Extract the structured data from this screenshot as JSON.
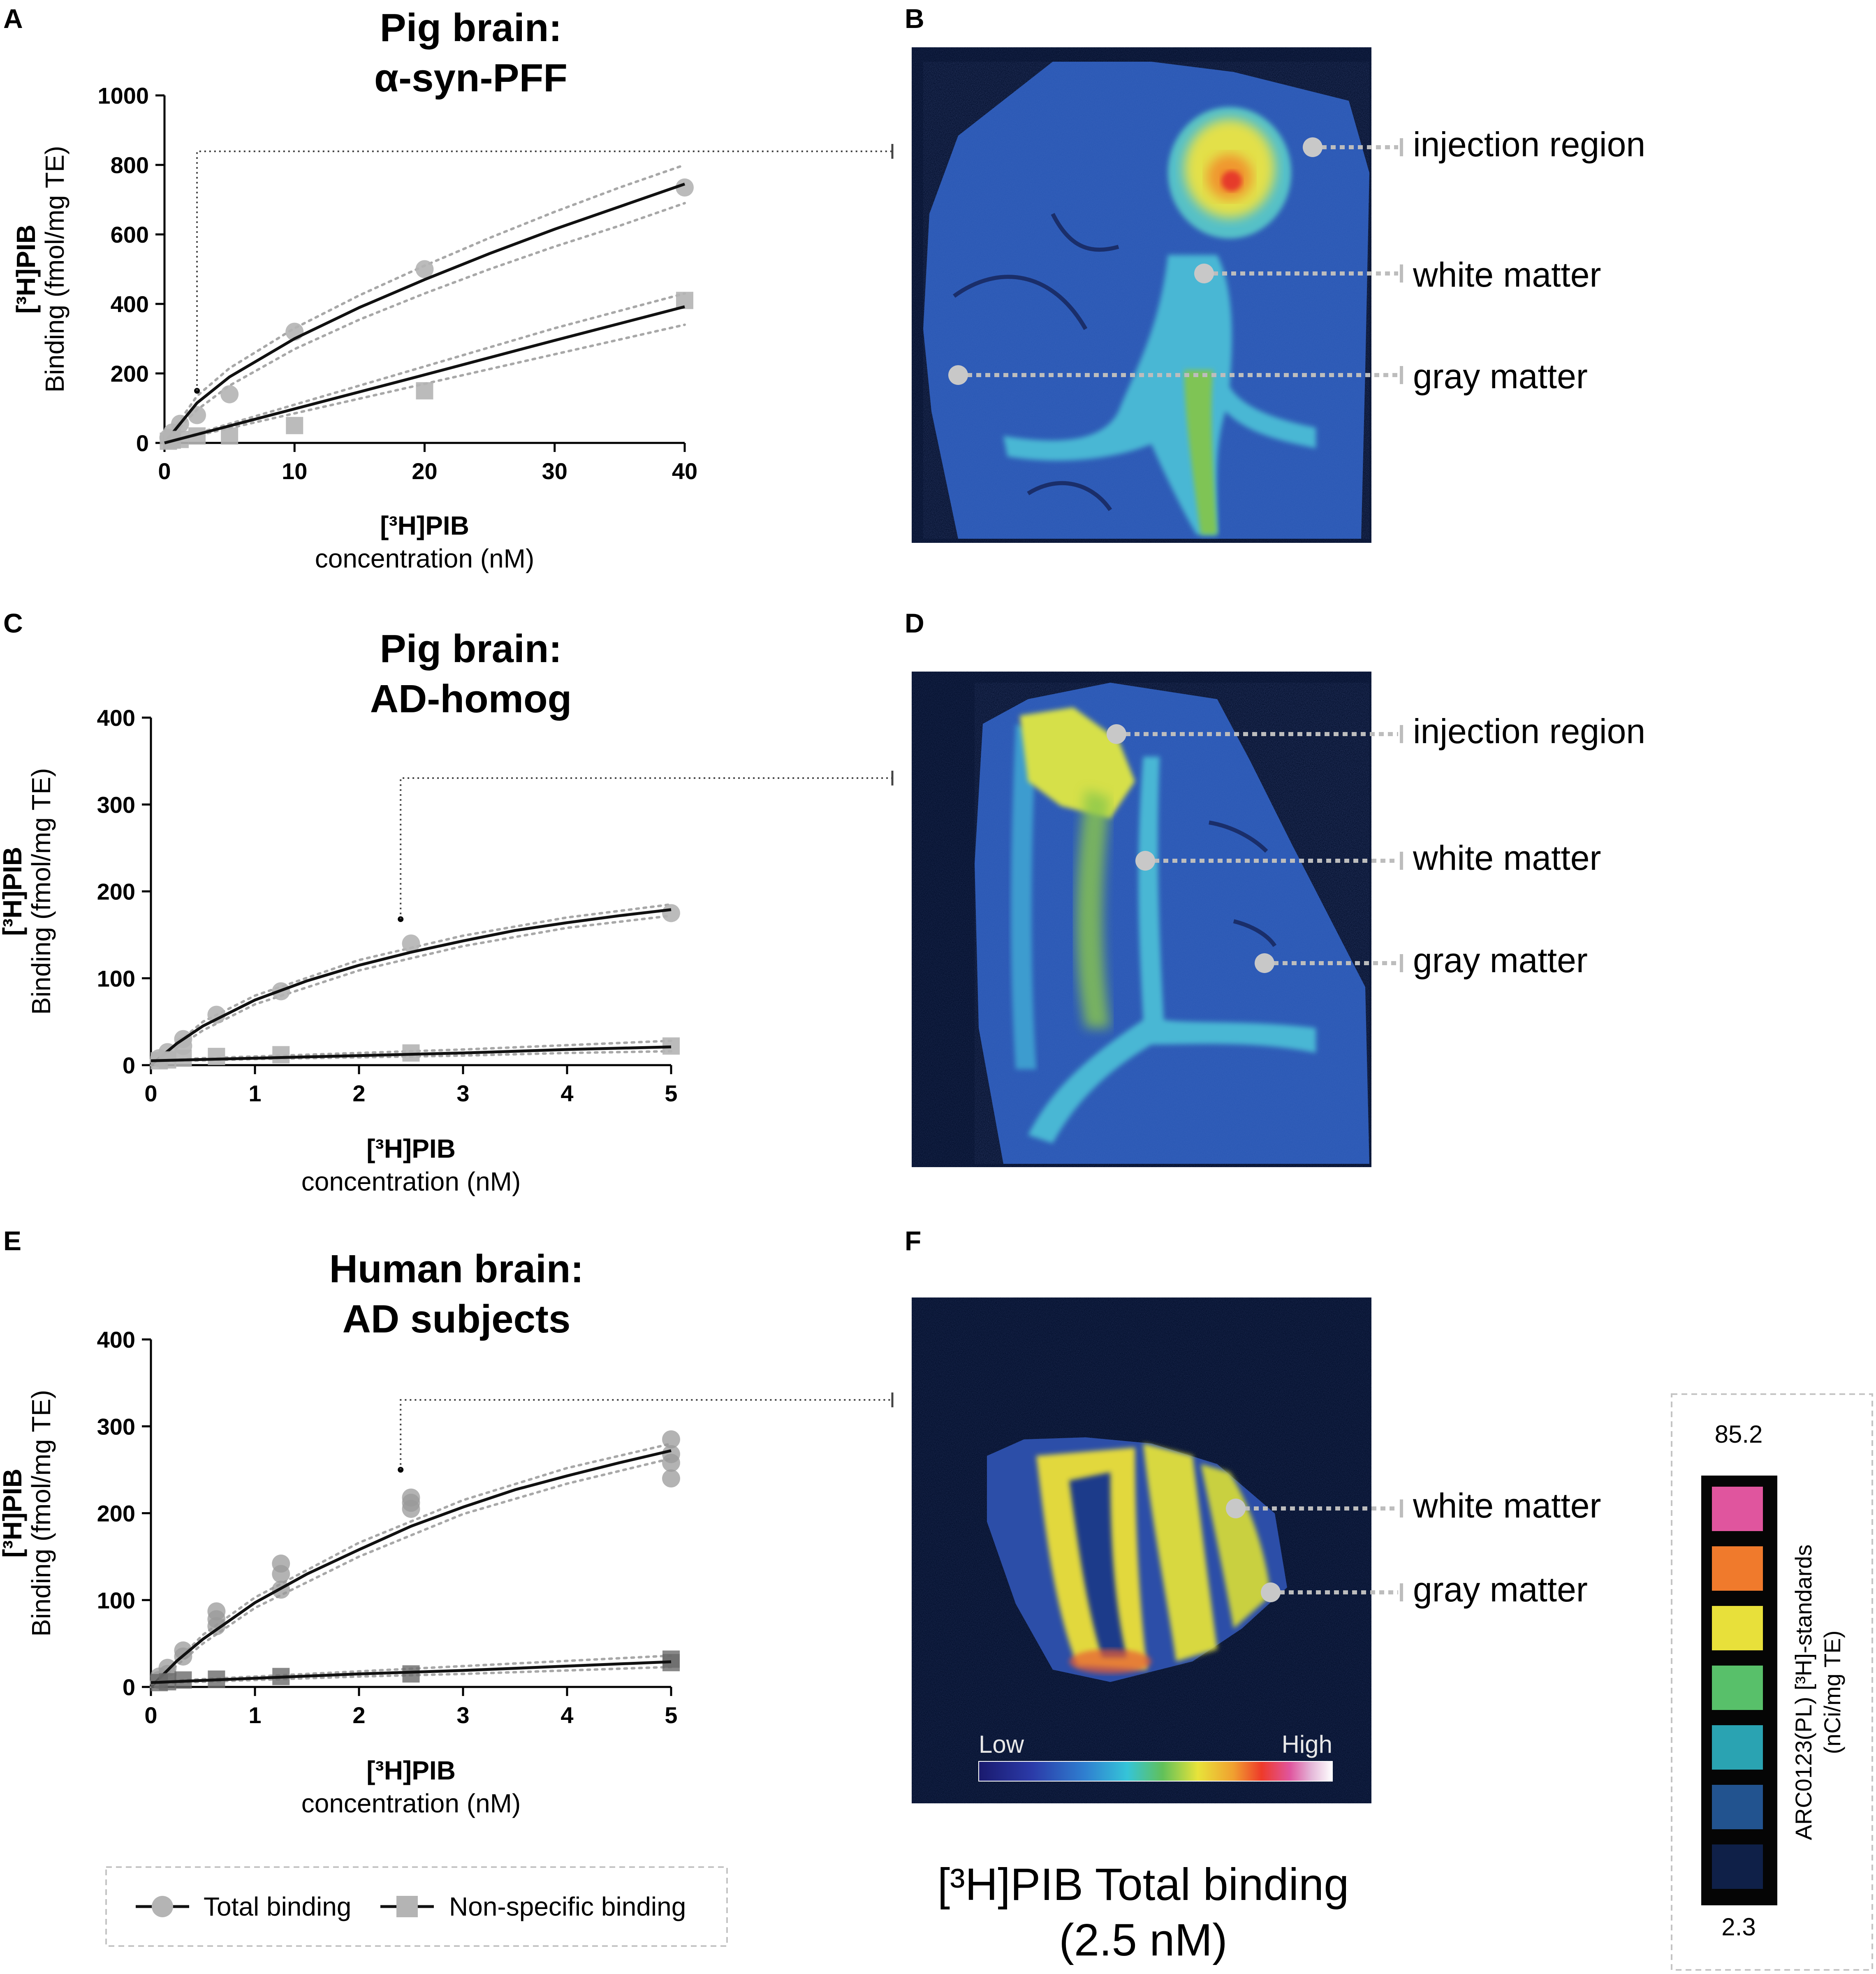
{
  "panels": {
    "A": "A",
    "B": "B",
    "C": "C",
    "D": "D",
    "E": "E",
    "F": "F"
  },
  "colors": {
    "fit_line": "#111111",
    "ci_line": "#a8a8a8",
    "total_marker": "#b4b4b4",
    "nonspecific_marker": "#b4b4b4",
    "human_total_marker": "#9a9a9a",
    "human_nonspecific_marker": "#6a6a6a",
    "leader": "#bdbdbd",
    "image_background": "#04102e"
  },
  "chart_data": [
    {
      "id": "A",
      "type": "scatter",
      "title": [
        "Pig brain:",
        "α-syn-PFF"
      ],
      "ylabel_bold": "[³H]PIB",
      "ylabel": "Binding (fmol/mg TE)",
      "xlabel_bold": "[³H]PIB",
      "xlabel": "concentration (nM)",
      "xlim": [
        0,
        40
      ],
      "ylim": [
        0,
        1000
      ],
      "xticks": [
        0,
        10,
        20,
        30,
        40
      ],
      "yticks": [
        0,
        200,
        400,
        600,
        800,
        1000
      ],
      "reference_point": {
        "x": 2.5,
        "y": 150
      },
      "series": [
        {
          "name": "Total binding",
          "marker": "circle",
          "points": [
            [
              0.3,
              15
            ],
            [
              0.6,
              30
            ],
            [
              1.2,
              55
            ],
            [
              2.5,
              80
            ],
            [
              5,
              140
            ],
            [
              10,
              320
            ],
            [
              20,
              500
            ],
            [
              40,
              735
            ]
          ],
          "fit": [
            [
              0,
              0
            ],
            [
              2.5,
              115
            ],
            [
              5,
              190
            ],
            [
              10,
              300
            ],
            [
              15,
              390
            ],
            [
              20,
              470
            ],
            [
              25,
              545
            ],
            [
              30,
              615
            ],
            [
              35,
              680
            ],
            [
              40,
              745
            ]
          ],
          "ci_upper": [
            [
              0,
              0
            ],
            [
              2.5,
              135
            ],
            [
              5,
              215
            ],
            [
              10,
              330
            ],
            [
              15,
              425
            ],
            [
              20,
              510
            ],
            [
              25,
              590
            ],
            [
              30,
              665
            ],
            [
              35,
              735
            ],
            [
              40,
              800
            ]
          ],
          "ci_lower": [
            [
              0,
              0
            ],
            [
              2.5,
              95
            ],
            [
              5,
              165
            ],
            [
              10,
              270
            ],
            [
              15,
              355
            ],
            [
              20,
              430
            ],
            [
              25,
              500
            ],
            [
              30,
              565
            ],
            [
              35,
              625
            ],
            [
              40,
              690
            ]
          ]
        },
        {
          "name": "Non-specific binding",
          "marker": "square",
          "points": [
            [
              0.3,
              5
            ],
            [
              0.6,
              8
            ],
            [
              1.2,
              10
            ],
            [
              2.5,
              20
            ],
            [
              5,
              20
            ],
            [
              10,
              50
            ],
            [
              20,
              150
            ],
            [
              40,
              410
            ]
          ],
          "fit": [
            [
              0,
              0
            ],
            [
              10,
              98
            ],
            [
              20,
              196
            ],
            [
              30,
              295
            ],
            [
              40,
              392
            ]
          ],
          "ci_upper": [
            [
              0,
              0
            ],
            [
              10,
              110
            ],
            [
              20,
              220
            ],
            [
              30,
              330
            ],
            [
              40,
              430
            ]
          ],
          "ci_lower": [
            [
              0,
              0
            ],
            [
              10,
              85
            ],
            [
              20,
              170
            ],
            [
              30,
              255
            ],
            [
              40,
              340
            ]
          ]
        }
      ]
    },
    {
      "id": "C",
      "type": "scatter",
      "title": [
        "Pig brain:",
        "AD-homog"
      ],
      "ylabel_bold": "[³H]PIB",
      "ylabel": "Binding (fmol/mg TE)",
      "xlabel_bold": "[³H]PIB",
      "xlabel": "concentration (nM)",
      "xlim": [
        0,
        5
      ],
      "ylim": [
        0,
        400
      ],
      "xticks": [
        0,
        1,
        2,
        3,
        4,
        5
      ],
      "yticks": [
        0,
        100,
        200,
        300,
        400
      ],
      "reference_point": {
        "x": 2.4,
        "y": 168
      },
      "series": [
        {
          "name": "Total binding",
          "marker": "circle",
          "points": [
            [
              0.08,
              8
            ],
            [
              0.16,
              15
            ],
            [
              0.31,
              30
            ],
            [
              0.31,
              22
            ],
            [
              0.63,
              58
            ],
            [
              1.25,
              85
            ],
            [
              2.5,
              140
            ],
            [
              5,
              175
            ]
          ],
          "fit": [
            [
              0,
              0
            ],
            [
              0.25,
              25
            ],
            [
              0.5,
              45
            ],
            [
              1,
              75
            ],
            [
              1.5,
              97
            ],
            [
              2,
              115
            ],
            [
              2.5,
              130
            ],
            [
              3,
              143
            ],
            [
              3.5,
              155
            ],
            [
              4,
              164
            ],
            [
              4.5,
              172
            ],
            [
              5,
              179
            ]
          ],
          "ci_upper": [
            [
              0,
              0
            ],
            [
              0.5,
              50
            ],
            [
              1,
              80
            ],
            [
              2,
              121
            ],
            [
              3,
              149
            ],
            [
              4,
              170
            ],
            [
              5,
              185
            ]
          ],
          "ci_lower": [
            [
              0,
              0
            ],
            [
              0.5,
              40
            ],
            [
              1,
              70
            ],
            [
              2,
              109
            ],
            [
              3,
              137
            ],
            [
              4,
              158
            ],
            [
              5,
              172
            ]
          ]
        },
        {
          "name": "Non-specific binding",
          "marker": "square",
          "points": [
            [
              0.08,
              5
            ],
            [
              0.16,
              6
            ],
            [
              0.31,
              8
            ],
            [
              0.63,
              10
            ],
            [
              1.25,
              12
            ],
            [
              2.5,
              14
            ],
            [
              5,
              22
            ]
          ],
          "fit": [
            [
              0,
              5
            ],
            [
              1,
              8
            ],
            [
              2,
              11
            ],
            [
              3,
              14
            ],
            [
              4,
              18
            ],
            [
              5,
              21
            ]
          ],
          "ci_upper": [
            [
              0,
              6
            ],
            [
              1,
              10
            ],
            [
              2,
              14
            ],
            [
              3,
              18
            ],
            [
              4,
              23
            ],
            [
              5,
              28
            ]
          ],
          "ci_lower": [
            [
              0,
              4
            ],
            [
              1,
              7
            ],
            [
              2,
              9
            ],
            [
              3,
              11
            ],
            [
              4,
              14
            ],
            [
              5,
              16
            ]
          ]
        }
      ]
    },
    {
      "id": "E",
      "type": "scatter",
      "title": [
        "Human brain:",
        "AD subjects"
      ],
      "ylabel_bold": "[³H]PIB",
      "ylabel": "Binding (fmol/mg TE)",
      "xlabel_bold": "[³H]PIB",
      "xlabel": "concentration (nM)",
      "xlim": [
        0,
        5
      ],
      "ylim": [
        0,
        400
      ],
      "xticks": [
        0,
        1,
        2,
        3,
        4,
        5
      ],
      "yticks": [
        0,
        100,
        200,
        300,
        400
      ],
      "reference_point": {
        "x": 2.4,
        "y": 250
      },
      "series": [
        {
          "name": "Total binding",
          "marker": "circle",
          "points": [
            [
              0.08,
              8
            ],
            [
              0.08,
              12
            ],
            [
              0.16,
              15
            ],
            [
              0.16,
              22
            ],
            [
              0.31,
              35
            ],
            [
              0.31,
              42
            ],
            [
              0.63,
              70
            ],
            [
              0.63,
              78
            ],
            [
              0.63,
              87
            ],
            [
              1.25,
              112
            ],
            [
              1.25,
              130
            ],
            [
              1.25,
              142
            ],
            [
              2.5,
              205
            ],
            [
              2.5,
              212
            ],
            [
              2.5,
              218
            ],
            [
              5,
              240
            ],
            [
              5,
              258
            ],
            [
              5,
              268
            ],
            [
              5,
              285
            ]
          ],
          "fit": [
            [
              0,
              0
            ],
            [
              0.25,
              30
            ],
            [
              0.5,
              55
            ],
            [
              1,
              97
            ],
            [
              1.5,
              130
            ],
            [
              2,
              158
            ],
            [
              2.5,
              185
            ],
            [
              3,
              207
            ],
            [
              3.5,
              227
            ],
            [
              4,
              243
            ],
            [
              4.5,
              258
            ],
            [
              5,
              272
            ]
          ],
          "ci_upper": [
            [
              0,
              0
            ],
            [
              0.5,
              60
            ],
            [
              1,
              103
            ],
            [
              2,
              166
            ],
            [
              3,
              215
            ],
            [
              4,
              252
            ],
            [
              5,
              280
            ]
          ],
          "ci_lower": [
            [
              0,
              0
            ],
            [
              0.5,
              50
            ],
            [
              1,
              91
            ],
            [
              2,
              150
            ],
            [
              3,
              199
            ],
            [
              4,
              234
            ],
            [
              5,
              263
            ]
          ]
        },
        {
          "name": "Non-specific binding",
          "marker": "square",
          "points": [
            [
              0.08,
              5
            ],
            [
              0.16,
              6
            ],
            [
              0.31,
              8
            ],
            [
              0.63,
              9
            ],
            [
              1.25,
              12
            ],
            [
              2.5,
              15
            ],
            [
              5,
              28
            ],
            [
              5,
              32
            ]
          ],
          "fit": [
            [
              0,
              5
            ],
            [
              1,
              10
            ],
            [
              2,
              15
            ],
            [
              3,
              19
            ],
            [
              4,
              24
            ],
            [
              5,
              29
            ]
          ],
          "ci_upper": [
            [
              0,
              6
            ],
            [
              1,
              12
            ],
            [
              2,
              18
            ],
            [
              3,
              24
            ],
            [
              4,
              30
            ],
            [
              5,
              36
            ]
          ],
          "ci_lower": [
            [
              0,
              4
            ],
            [
              1,
              8
            ],
            [
              2,
              12
            ],
            [
              3,
              15
            ],
            [
              4,
              19
            ],
            [
              5,
              23
            ]
          ]
        }
      ]
    }
  ],
  "images": {
    "B": {
      "labels": [
        "injection region",
        "white matter",
        "gray matter"
      ]
    },
    "D": {
      "labels": [
        "injection region",
        "white matter",
        "gray matter"
      ]
    },
    "F": {
      "labels": [
        "white matter",
        "gray matter"
      ],
      "scale_low": "Low",
      "scale_high": "High"
    }
  },
  "legend": {
    "total": "Total binding",
    "nonspecific": "Non-specific binding"
  },
  "caption": {
    "line1": "[³H]PIB Total binding",
    "line2": "(2.5 nM)"
  },
  "standards": {
    "top_value": "85.2",
    "bottom_value": "2.3",
    "label_line1": "ARC0123(PL) [³H]-standards",
    "label_line2": "(nCi/mg TE)",
    "colors": [
      "#e0559e",
      "#f07a2c",
      "#e8e03a",
      "#58c06a",
      "#2aa3b2",
      "#22538f",
      "#0f2048"
    ]
  }
}
